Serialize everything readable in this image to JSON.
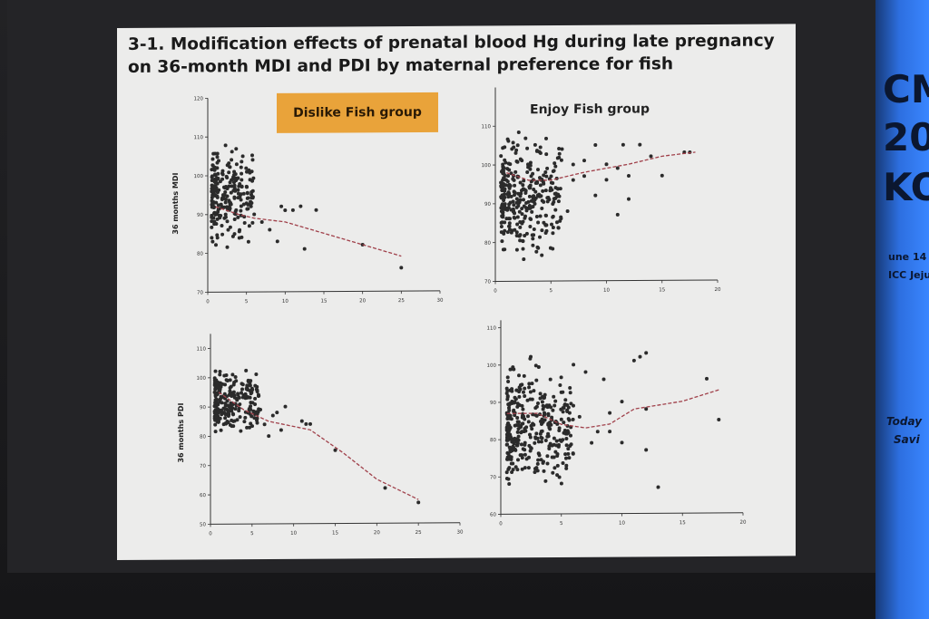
{
  "slide": {
    "title": "3-1. Modification  effects of prenatal blood Hg during late pregnancy on 36-month MDI and PDI by maternal preference for fish",
    "group_left": "Dislike Fish group",
    "group_right": "Enjoy Fish group",
    "ylabel_top": "36 months MDI",
    "ylabel_bottom": "36 months PDI"
  },
  "banner": {
    "line1": "CM",
    "line2": "20",
    "line3": "KO",
    "date": "une 14 -",
    "venue": "ICC Jeju",
    "tag1": "Today",
    "tag2": "Savi"
  },
  "colors": {
    "accent": "#e9a33a",
    "points": "#2b2b2b",
    "trend": "#a0404a",
    "banner": "#2d6fe0"
  },
  "chart_data": [
    {
      "type": "scatter",
      "panel": "MDI, Dislike Fish group",
      "ylabel": "36 months MDI",
      "xticks": [
        "0",
        "5",
        "10",
        "15",
        "20",
        "25",
        "30"
      ],
      "yticks": [
        "70",
        "80",
        "90",
        "100",
        "110",
        "120"
      ],
      "xlim": [
        0,
        30
      ],
      "ylim": [
        70,
        120
      ],
      "cluster": {
        "x": [
          0.5,
          6
        ],
        "y": [
          79,
          111
        ],
        "n": 240
      },
      "extra_points": [
        [
          6,
          90
        ],
        [
          7,
          88
        ],
        [
          8,
          86
        ],
        [
          9,
          83
        ],
        [
          9.5,
          92
        ],
        [
          10,
          91
        ],
        [
          11,
          91
        ],
        [
          12,
          92
        ],
        [
          12.5,
          81
        ],
        [
          14,
          91
        ],
        [
          20,
          82
        ],
        [
          25,
          76
        ]
      ],
      "trend": [
        [
          1,
          92
        ],
        [
          4,
          90
        ],
        [
          6,
          89
        ],
        [
          10,
          88
        ],
        [
          15,
          85
        ],
        [
          20,
          82
        ],
        [
          25,
          79
        ]
      ]
    },
    {
      "type": "scatter",
      "panel": "MDI, Enjoy Fish group",
      "ylabel": "",
      "xticks": [
        "0",
        "5",
        "10",
        "15",
        "20"
      ],
      "yticks": [
        "70",
        "80",
        "90",
        "100",
        "110"
      ],
      "xlim": [
        0,
        20
      ],
      "ylim": [
        70,
        120
      ],
      "cluster": {
        "x": [
          0.5,
          6
        ],
        "y": [
          73,
          111
        ],
        "n": 330
      },
      "extra_points": [
        [
          6,
          104
        ],
        [
          6.5,
          88
        ],
        [
          7,
          96
        ],
        [
          7,
          100
        ],
        [
          8,
          97
        ],
        [
          8,
          101
        ],
        [
          9,
          92
        ],
        [
          9,
          105
        ],
        [
          10,
          100
        ],
        [
          10,
          96
        ],
        [
          11,
          87
        ],
        [
          11,
          99
        ],
        [
          11.5,
          105
        ],
        [
          12,
          97
        ],
        [
          12,
          91
        ],
        [
          13,
          105
        ],
        [
          14,
          102
        ],
        [
          15,
          97
        ],
        [
          17,
          103
        ],
        [
          17.5,
          103
        ]
      ],
      "trend": [
        [
          1,
          98
        ],
        [
          3,
          96
        ],
        [
          5,
          96
        ],
        [
          8,
          98
        ],
        [
          12,
          100
        ],
        [
          15,
          102
        ],
        [
          18,
          103
        ]
      ]
    },
    {
      "type": "scatter",
      "panel": "PDI, Dislike Fish group",
      "ylabel": "36 months PDI",
      "xticks": [
        "0",
        "5",
        "10",
        "15",
        "20",
        "25",
        "30"
      ],
      "yticks": [
        "50",
        "60",
        "70",
        "80",
        "90",
        "100",
        "110"
      ],
      "xlim": [
        0,
        30
      ],
      "ylim": [
        50,
        115
      ],
      "cluster": {
        "x": [
          0.5,
          6
        ],
        "y": [
          76,
          106
        ],
        "n": 240
      },
      "extra_points": [
        [
          6,
          89
        ],
        [
          6.5,
          84
        ],
        [
          7,
          80
        ],
        [
          7.5,
          87
        ],
        [
          8,
          88
        ],
        [
          8.5,
          82
        ],
        [
          9,
          90
        ],
        [
          11,
          85
        ],
        [
          11.5,
          84
        ],
        [
          12,
          84
        ],
        [
          15,
          75
        ],
        [
          21,
          62
        ],
        [
          25,
          57
        ]
      ],
      "trend": [
        [
          1,
          95
        ],
        [
          4,
          89
        ],
        [
          7,
          85
        ],
        [
          12,
          82
        ],
        [
          16,
          74
        ],
        [
          20,
          65
        ],
        [
          25,
          58
        ]
      ]
    },
    {
      "type": "scatter",
      "panel": "PDI, Enjoy Fish group",
      "ylabel": "",
      "xticks": [
        "0",
        "5",
        "10",
        "15",
        "20"
      ],
      "yticks": [
        "60",
        "70",
        "80",
        "90",
        "100",
        "110"
      ],
      "xlim": [
        0,
        20
      ],
      "ylim": [
        60,
        112
      ],
      "cluster": {
        "x": [
          0.5,
          6
        ],
        "y": [
          62,
          105
        ],
        "n": 360
      },
      "extra_points": [
        [
          6,
          100
        ],
        [
          6.5,
          86
        ],
        [
          7,
          98
        ],
        [
          7.5,
          79
        ],
        [
          8,
          82
        ],
        [
          8.5,
          96
        ],
        [
          9,
          82
        ],
        [
          9,
          87
        ],
        [
          10,
          79
        ],
        [
          10,
          90
        ],
        [
          11,
          101
        ],
        [
          11.5,
          102
        ],
        [
          12,
          88
        ],
        [
          12,
          77
        ],
        [
          12,
          103
        ],
        [
          13,
          67
        ],
        [
          17,
          96
        ],
        [
          18,
          85
        ]
      ],
      "trend": [
        [
          0.5,
          87
        ],
        [
          3,
          87
        ],
        [
          5,
          84
        ],
        [
          7,
          83
        ],
        [
          9,
          84
        ],
        [
          11,
          88
        ],
        [
          15,
          90
        ],
        [
          18,
          93
        ]
      ]
    }
  ]
}
